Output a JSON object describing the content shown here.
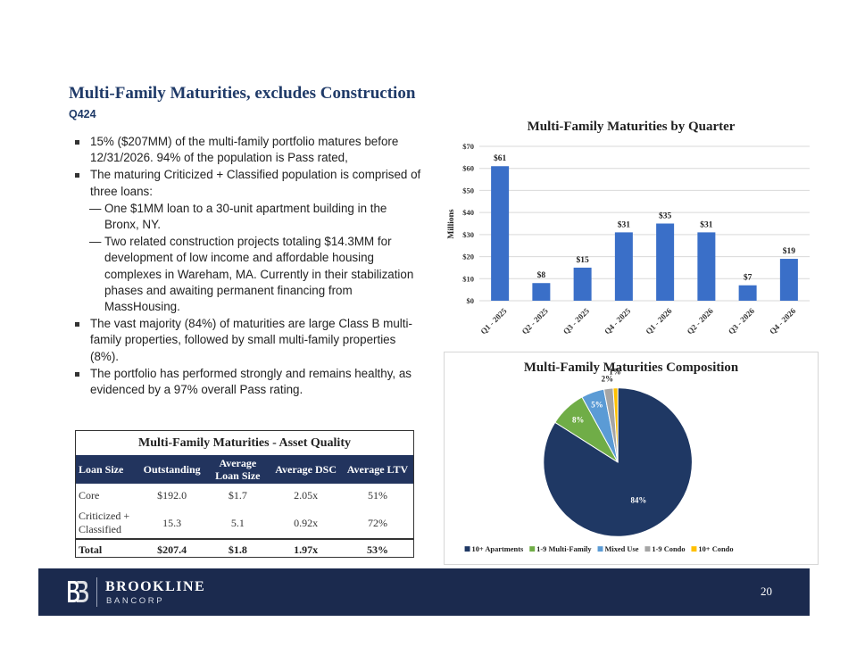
{
  "slide": {
    "title": "Multi-Family Maturities, excludes Construction",
    "subtitle": "Q424",
    "page_number": "20"
  },
  "bullets": [
    {
      "type": "bullet",
      "text": "15% ($207MM) of the multi-family portfolio matures before 12/31/2026. 94% of the population is Pass rated,"
    },
    {
      "type": "bullet",
      "text": "The maturing Criticized + Classified population is comprised of three loans:"
    },
    {
      "type": "sub",
      "text": "One $1MM loan to a 30-unit apartment building in the Bronx, NY."
    },
    {
      "type": "sub",
      "text": "Two related construction projects totaling $14.3MM for development of low income and affordable housing complexes in Wareham, MA. Currently in their stabilization phases and awaiting permanent financing from MassHousing."
    },
    {
      "type": "bullet",
      "text": "The vast majority (84%) of maturities are large Class B multi-family properties, followed by small multi-family properties (8%)."
    },
    {
      "type": "bullet",
      "text": "The portfolio has performed strongly and remains healthy, as evidenced by a 97% overall Pass rating."
    }
  ],
  "table": {
    "title": "Multi-Family Maturities - Asset Quality",
    "headers": [
      "Loan Size",
      "Outstanding",
      "Average Loan Size",
      "Average DSC",
      "Average LTV"
    ],
    "rows": [
      [
        "Core",
        "$192.0",
        "$1.7",
        "2.05x",
        "51%"
      ],
      [
        "Criticized + Classified",
        "15.3",
        "5.1",
        "0.92x",
        "72%"
      ]
    ],
    "total": [
      "Total",
      "$207.4",
      "$1.8",
      "1.97x",
      "53%"
    ]
  },
  "footer": {
    "brand": "BROOKLINE",
    "brand_sub": "BANCORP"
  },
  "chart_data": [
    {
      "type": "bar",
      "title": "Multi-Family Maturities by Quarter",
      "ylabel": "Millions",
      "xlabel": "",
      "categories": [
        "Q1 - 2025",
        "Q2 - 2025",
        "Q3 - 2025",
        "Q4 - 2025",
        "Q1 - 2026",
        "Q2 - 2026",
        "Q3 - 2026",
        "Q4 - 2026"
      ],
      "values": [
        61,
        8,
        15,
        31,
        35,
        31,
        7,
        19
      ],
      "data_labels": [
        "$61",
        "$8",
        "$15",
        "$31",
        "$35",
        "$31",
        "$7",
        "$19"
      ],
      "ylim": [
        0,
        70
      ],
      "yticks": [
        "$0",
        "$10",
        "$20",
        "$30",
        "$40",
        "$50",
        "$60",
        "$70"
      ],
      "grid": true,
      "bar_color": "#3a6fc8"
    },
    {
      "type": "pie",
      "title": "Multi-Family Maturities Composition",
      "labels": [
        "10+ Apartments",
        "1-9 Multi-Family",
        "Mixed Use",
        "1-9 Condo",
        "10+ Condo"
      ],
      "values": [
        84,
        8,
        5,
        2,
        1
      ],
      "data_labels": [
        "84%",
        "8%",
        "5%",
        "2%",
        "1%"
      ],
      "colors": [
        "#1f3864",
        "#70ad47",
        "#5b9bd5",
        "#a5a5a5",
        "#ffc000"
      ],
      "legend_position": "bottom"
    }
  ]
}
